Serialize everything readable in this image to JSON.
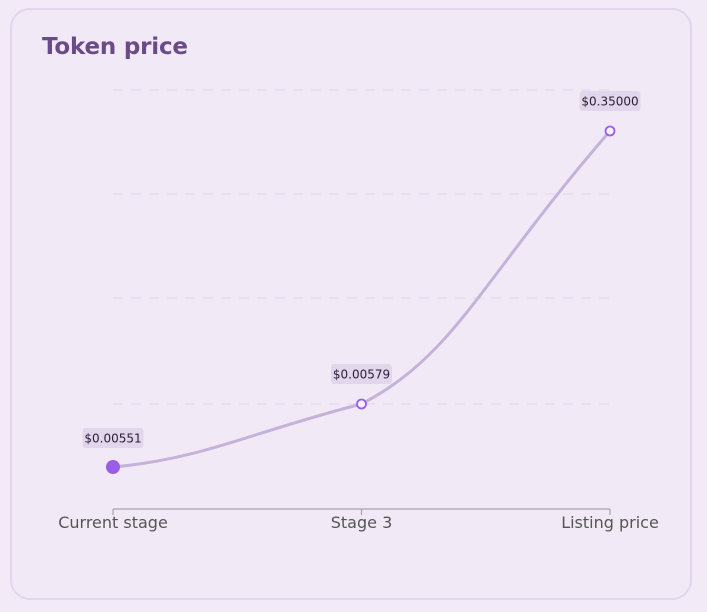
{
  "card": {
    "title": "Token price"
  },
  "colors": {
    "line": "#c5b2db",
    "point": "#9b5de5",
    "badge_bg": "#e2d6ec",
    "grid": "#e6dcef",
    "axis": "#a9a1b0"
  },
  "chart_data": {
    "type": "line",
    "title": "Token price",
    "xlabel": "",
    "ylabel": "",
    "categories": [
      "Current stage",
      "Stage 3",
      "Listing price"
    ],
    "series": [
      {
        "values": [
          0.00551,
          0.00579,
          0.35
        ],
        "labels": [
          "$0.00551",
          "$0.00579",
          "$0.35000"
        ]
      }
    ],
    "grid": true,
    "legend": "none"
  }
}
